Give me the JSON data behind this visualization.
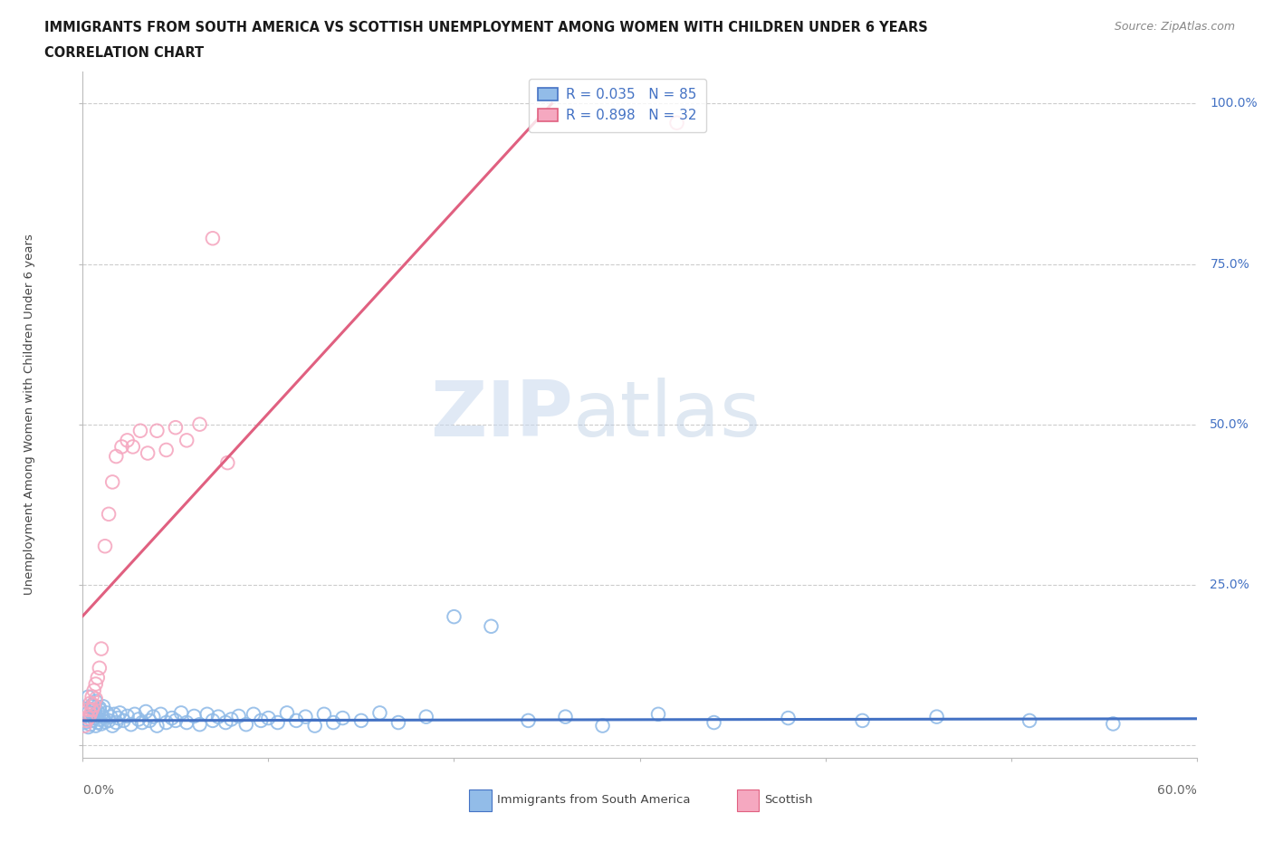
{
  "title_line1": "IMMIGRANTS FROM SOUTH AMERICA VS SCOTTISH UNEMPLOYMENT AMONG WOMEN WITH CHILDREN UNDER 6 YEARS",
  "title_line2": "CORRELATION CHART",
  "source_text": "Source: ZipAtlas.com",
  "ylabel": "Unemployment Among Women with Children Under 6 years",
  "xlim": [
    0.0,
    0.6
  ],
  "ylim": [
    -0.02,
    1.05
  ],
  "yticks": [
    0.0,
    0.25,
    0.5,
    0.75,
    1.0
  ],
  "yticklabels": [
    "",
    "25.0%",
    "50.0%",
    "75.0%",
    "100.0%"
  ],
  "grid_color": "#cccccc",
  "background_color": "#ffffff",
  "watermark_ZIP": "ZIP",
  "watermark_atlas": "atlas",
  "legend_R1": "R = 0.035",
  "legend_N1": "N = 85",
  "legend_R2": "R = 0.898",
  "legend_N2": "N = 32",
  "blue_color": "#92bce8",
  "pink_color": "#f5a8c0",
  "blue_line_color": "#4472c4",
  "pink_line_color": "#e06080",
  "blue_scatter_x": [
    0.001,
    0.002,
    0.003,
    0.003,
    0.004,
    0.004,
    0.005,
    0.005,
    0.006,
    0.006,
    0.007,
    0.007,
    0.008,
    0.008,
    0.009,
    0.009,
    0.01,
    0.01,
    0.011,
    0.012,
    0.013,
    0.014,
    0.015,
    0.016,
    0.017,
    0.018,
    0.019,
    0.02,
    0.022,
    0.024,
    0.026,
    0.028,
    0.03,
    0.032,
    0.034,
    0.036,
    0.038,
    0.04,
    0.042,
    0.045,
    0.048,
    0.05,
    0.053,
    0.056,
    0.06,
    0.063,
    0.067,
    0.07,
    0.073,
    0.077,
    0.08,
    0.084,
    0.088,
    0.092,
    0.096,
    0.1,
    0.105,
    0.11,
    0.115,
    0.12,
    0.125,
    0.13,
    0.135,
    0.14,
    0.15,
    0.16,
    0.17,
    0.185,
    0.2,
    0.22,
    0.24,
    0.26,
    0.28,
    0.31,
    0.34,
    0.38,
    0.42,
    0.46,
    0.51,
    0.555,
    0.003,
    0.005,
    0.007,
    0.009,
    0.011
  ],
  "blue_scatter_y": [
    0.035,
    0.04,
    0.028,
    0.05,
    0.032,
    0.045,
    0.038,
    0.06,
    0.042,
    0.055,
    0.03,
    0.048,
    0.035,
    0.052,
    0.04,
    0.058,
    0.033,
    0.047,
    0.043,
    0.036,
    0.05,
    0.038,
    0.044,
    0.03,
    0.048,
    0.035,
    0.042,
    0.05,
    0.038,
    0.045,
    0.032,
    0.048,
    0.04,
    0.035,
    0.052,
    0.038,
    0.044,
    0.03,
    0.048,
    0.035,
    0.042,
    0.038,
    0.05,
    0.035,
    0.045,
    0.032,
    0.048,
    0.038,
    0.044,
    0.035,
    0.04,
    0.045,
    0.032,
    0.048,
    0.038,
    0.042,
    0.035,
    0.05,
    0.038,
    0.044,
    0.03,
    0.048,
    0.035,
    0.042,
    0.038,
    0.05,
    0.035,
    0.044,
    0.2,
    0.185,
    0.038,
    0.044,
    0.03,
    0.048,
    0.035,
    0.042,
    0.038,
    0.044,
    0.038,
    0.033,
    0.075,
    0.062,
    0.068,
    0.055,
    0.06
  ],
  "pink_scatter_x": [
    0.001,
    0.002,
    0.003,
    0.003,
    0.004,
    0.004,
    0.005,
    0.005,
    0.006,
    0.006,
    0.007,
    0.007,
    0.008,
    0.009,
    0.01,
    0.012,
    0.014,
    0.016,
    0.018,
    0.021,
    0.024,
    0.027,
    0.031,
    0.035,
    0.04,
    0.045,
    0.05,
    0.056,
    0.063,
    0.07,
    0.078,
    0.32
  ],
  "pink_scatter_y": [
    0.03,
    0.038,
    0.042,
    0.055,
    0.048,
    0.065,
    0.055,
    0.075,
    0.062,
    0.085,
    0.072,
    0.095,
    0.105,
    0.12,
    0.15,
    0.31,
    0.36,
    0.41,
    0.45,
    0.465,
    0.475,
    0.465,
    0.49,
    0.455,
    0.49,
    0.46,
    0.495,
    0.475,
    0.5,
    0.79,
    0.44,
    0.97
  ],
  "pink_line_x0": 0.0,
  "pink_line_x1": 0.115,
  "blue_line_slope": 0.005,
  "blue_line_intercept": 0.038
}
